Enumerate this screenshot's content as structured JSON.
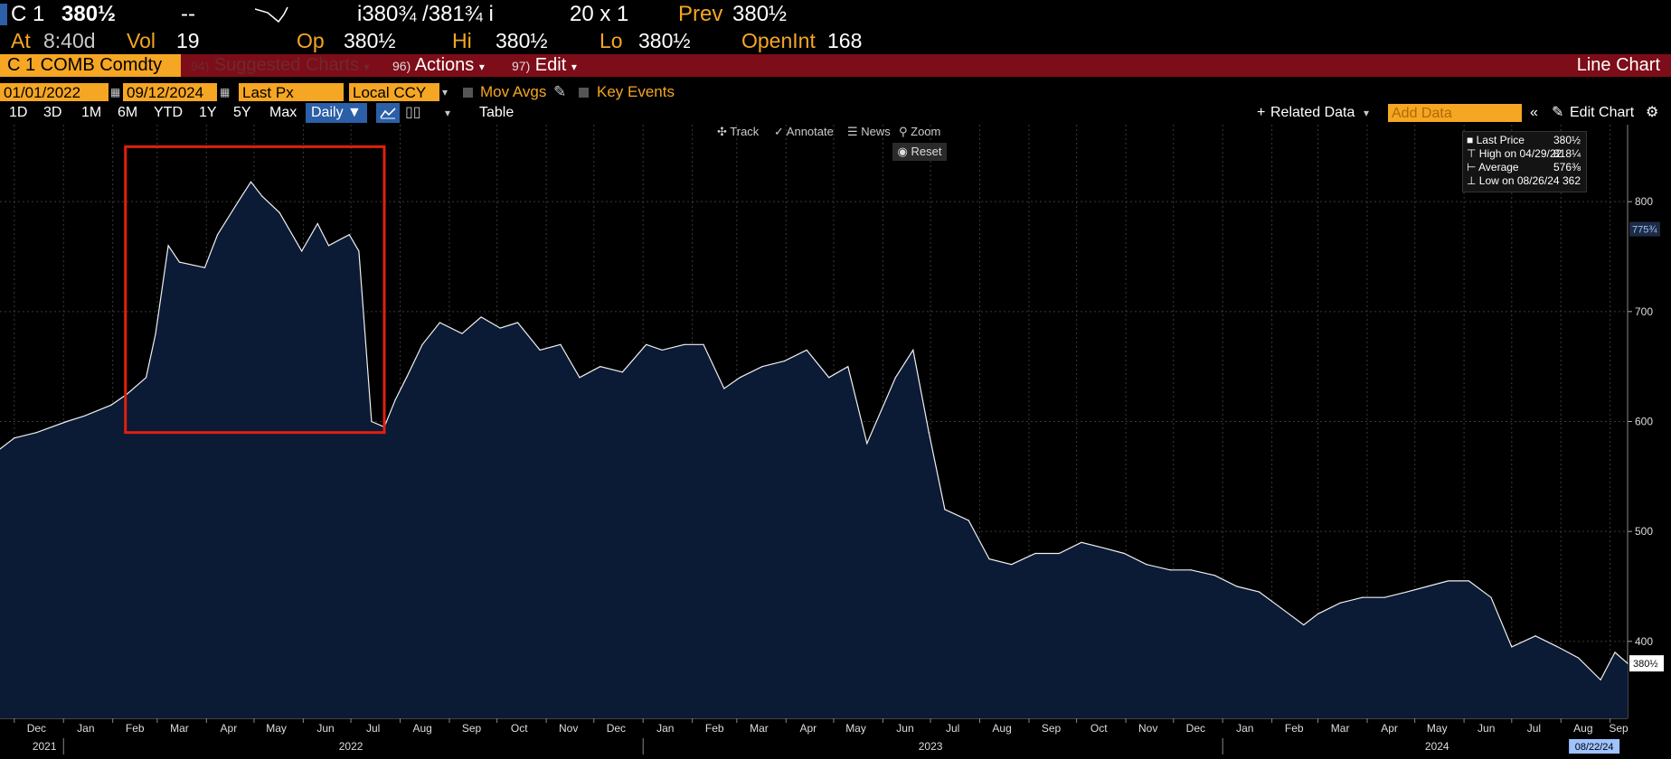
{
  "quote": {
    "ticker": "C 1",
    "last": "380½",
    "change": "--",
    "bid_ask": "i380¾ /381¾ i",
    "size": "20 x 1",
    "prev_label": "Prev",
    "prev": "380½",
    "at_label": "At",
    "at_time": "8:40d",
    "vol_label": "Vol",
    "vol": "19",
    "op_label": "Op",
    "op": "380½",
    "hi_label": "Hi",
    "hi": "380½",
    "lo_label": "Lo",
    "lo": "380½",
    "openint_label": "OpenInt",
    "openint": "168"
  },
  "menubar": {
    "security": "C 1 COMB Comdty",
    "suggested_num": "94)",
    "suggested_label": "Suggested Charts",
    "actions_num": "96)",
    "actions_label": "Actions",
    "edit_num": "97)",
    "edit_label": "Edit",
    "title": "Line Chart"
  },
  "settings": {
    "start_date": "01/01/2022",
    "end_date": "09/12/2024",
    "field": "Last Px",
    "currency": "Local CCY",
    "mov_avgs": "Mov Avgs",
    "key_events": "Key Events"
  },
  "periods": [
    "1D",
    "3D",
    "1M",
    "6M",
    "YTD",
    "1Y",
    "5Y",
    "Max"
  ],
  "toolbar": {
    "frequency": "Daily",
    "table": "Table",
    "related_data": "Related Data",
    "add_data_placeholder": "Add Data",
    "edit_chart": "Edit Chart"
  },
  "chart_tools": {
    "track": "Track",
    "annotate": "Annotate",
    "news": "News",
    "zoom": "Zoom",
    "reset": "Reset"
  },
  "legend": {
    "last_label": "Last Price",
    "last_value": "380½",
    "high_label": "High on 04/29/22",
    "high_value": "818¼",
    "avg_label": "Average",
    "avg_value": "576⅜",
    "low_label": "Low on 08/26/24",
    "low_value": "362"
  },
  "colors": {
    "accent": "#f5a623",
    "menubar": "#7d0d18",
    "area_fill": "#0b1a35",
    "highlight_box": "#e02010"
  },
  "chart_data": {
    "type": "area",
    "ylim": [
      330,
      870
    ],
    "y_ticks": [
      400,
      500,
      600,
      700,
      800
    ],
    "y_tick_labels": [
      "400",
      "500",
      "600",
      "700",
      "800"
    ],
    "x_month_labels": [
      "Dec",
      "Jan",
      "Feb",
      "Mar",
      "Apr",
      "May",
      "Jun",
      "Jul",
      "Aug",
      "Sep",
      "Oct",
      "Nov",
      "Dec",
      "Jan",
      "Feb",
      "Mar",
      "Apr",
      "May",
      "Jun",
      "Jul",
      "Aug",
      "Sep",
      "Oct",
      "Nov",
      "Dec",
      "Jan",
      "Feb",
      "Mar",
      "Apr",
      "May",
      "Jun",
      "Jul",
      "Aug",
      "Sep"
    ],
    "x_year_labels": [
      "2021",
      "2022",
      "2023",
      "2024"
    ],
    "right_tags": [
      "775¾",
      "380½"
    ],
    "date_tag": "08/22/24",
    "grid": true,
    "legend_position": "top-right",
    "x_start": "2021-11-22",
    "x_end": "2024-09-12",
    "series": [
      {
        "x": [
          "2021-11-22",
          "2021-12-01",
          "2021-12-15",
          "2022-01-03",
          "2022-01-14",
          "2022-01-31",
          "2022-02-10",
          "2022-02-22",
          "2022-02-28",
          "2022-03-08",
          "2022-03-15",
          "2022-03-31",
          "2022-04-08",
          "2022-04-21",
          "2022-04-29",
          "2022-05-06",
          "2022-05-17",
          "2022-05-31",
          "2022-06-10",
          "2022-06-17",
          "2022-06-30",
          "2022-07-06",
          "2022-07-14",
          "2022-07-22",
          "2022-07-29",
          "2022-08-05",
          "2022-08-15",
          "2022-08-26",
          "2022-09-09",
          "2022-09-21",
          "2022-10-03",
          "2022-10-14",
          "2022-10-28",
          "2022-11-10",
          "2022-11-22",
          "2022-12-05",
          "2022-12-19",
          "2023-01-03",
          "2023-01-13",
          "2023-01-27",
          "2023-02-08",
          "2023-02-21",
          "2023-03-03",
          "2023-03-17",
          "2023-03-31",
          "2023-04-14",
          "2023-04-28",
          "2023-05-10",
          "2023-05-22",
          "2023-05-31",
          "2023-06-09",
          "2023-06-20",
          "2023-06-30",
          "2023-07-10",
          "2023-07-25",
          "2023-08-07",
          "2023-08-21",
          "2023-09-05",
          "2023-09-20",
          "2023-10-04",
          "2023-10-18",
          "2023-10-31",
          "2023-11-14",
          "2023-11-29",
          "2023-12-12",
          "2023-12-27",
          "2024-01-10",
          "2024-01-24",
          "2024-02-07",
          "2024-02-21",
          "2024-03-01",
          "2024-03-15",
          "2024-03-29",
          "2024-04-12",
          "2024-04-26",
          "2024-05-09",
          "2024-05-22",
          "2024-06-04",
          "2024-06-18",
          "2024-07-01",
          "2024-07-16",
          "2024-07-30",
          "2024-08-12",
          "2024-08-26",
          "2024-09-04",
          "2024-09-12"
        ],
        "y": [
          575,
          585,
          590,
          600,
          605,
          615,
          625,
          640,
          680,
          760,
          745,
          740,
          770,
          800,
          818,
          805,
          790,
          755,
          780,
          760,
          770,
          755,
          600,
          595,
          620,
          640,
          670,
          690,
          680,
          695,
          685,
          690,
          665,
          670,
          640,
          650,
          645,
          670,
          665,
          670,
          670,
          630,
          640,
          650,
          655,
          665,
          640,
          650,
          580,
          610,
          640,
          665,
          590,
          520,
          510,
          475,
          470,
          480,
          480,
          490,
          485,
          480,
          470,
          465,
          465,
          460,
          450,
          445,
          430,
          415,
          425,
          435,
          440,
          440,
          445,
          450,
          455,
          455,
          440,
          395,
          405,
          395,
          385,
          365,
          390,
          380
        ]
      }
    ]
  }
}
